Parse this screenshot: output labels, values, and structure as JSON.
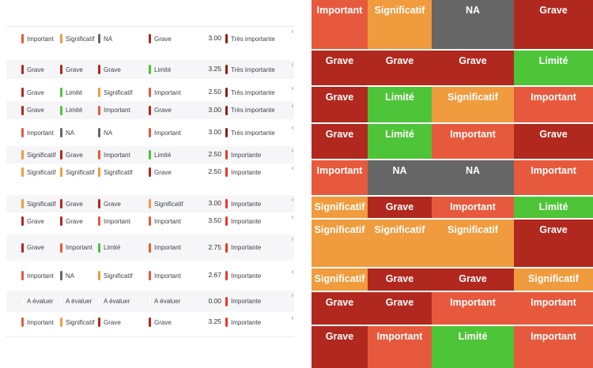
{
  "colors": {
    "important": "#e7593d",
    "significatif": "#f09b3d",
    "grave": "#b1281e",
    "limite": "#4ec439",
    "na": "#666666",
    "a_evaluer": "#ffffff",
    "tres_importante_bar": "#8e1f1b",
    "importante_bar": "#e8392c",
    "grid_text": "#ffffff",
    "table_text": "#41434b"
  },
  "table": {
    "rows": [
      {
        "cells": [
          "Important",
          "Significatif",
          "NA",
          "Grave"
        ],
        "score": "3.00",
        "priority": "Très importante"
      },
      {
        "cells": [
          "Grave",
          "Grave",
          "Grave",
          "Limité"
        ],
        "score": "3.25",
        "priority": "Très importante"
      },
      {
        "cells": [
          "Grave",
          "Limité",
          "Significatif",
          "Important"
        ],
        "score": "2.50",
        "priority": "Très importante"
      },
      {
        "cells": [
          "Grave",
          "Limité",
          "Important",
          "Grave"
        ],
        "score": "3.00",
        "priority": "Très importante"
      },
      {
        "cells": [
          "Important",
          "NA",
          "NA",
          "Important"
        ],
        "score": "3.00",
        "priority": "Très importante"
      },
      {
        "cells": [
          "Significatif",
          "Grave",
          "Important",
          "Limité"
        ],
        "score": "2.50",
        "priority": "Importante"
      },
      {
        "cells": [
          "Significatif",
          "Significatif",
          "Significatif",
          "Grave"
        ],
        "score": "2.50",
        "priority": "Importante"
      },
      {
        "cells": [
          "Significatif",
          "Grave",
          "Grave",
          "Significatif"
        ],
        "score": "3.00",
        "priority": "Importante"
      },
      {
        "cells": [
          "Grave",
          "Grave",
          "Important",
          "Important"
        ],
        "score": "3.50",
        "priority": "Importante"
      },
      {
        "cells": [
          "Grave",
          "Important",
          "Limité",
          "Important"
        ],
        "score": "2.75",
        "priority": "Importante"
      },
      {
        "cells": [
          "Important",
          "NA",
          "Significatif",
          "Important"
        ],
        "score": "2.67",
        "priority": "Importante"
      },
      {
        "cells": [
          "A évaluer",
          "A évaluer",
          "A évaluer",
          "A évaluer"
        ],
        "score": "0.00",
        "priority": "Importante"
      },
      {
        "cells": [
          "Important",
          "Significatif",
          "Grave",
          "Grave"
        ],
        "score": "3.25",
        "priority": "Importante"
      }
    ]
  },
  "grid": {
    "rows": [
      {
        "cells": [
          "Important",
          "Significatif",
          "NA",
          "Grave"
        ]
      },
      {
        "cells": [
          "Grave",
          "Grave",
          "Grave",
          "Limité"
        ]
      },
      {
        "cells": [
          "Grave",
          "Limité",
          "Significatif",
          "Important"
        ]
      },
      {
        "cells": [
          "Grave",
          "Limité",
          "Important",
          "Grave"
        ]
      },
      {
        "cells": [
          "Important",
          "NA",
          "NA",
          "Important"
        ]
      },
      {
        "cells": [
          "Significatif",
          "Grave",
          "Important",
          "Limité"
        ]
      },
      {
        "cells": [
          "Significatif",
          "Significatif",
          "Significatif",
          "Grave"
        ]
      },
      {
        "cells": [
          "Significatif",
          "Grave",
          "Grave",
          "Significatif"
        ]
      },
      {
        "cells": [
          "Grave",
          "Grave",
          "Important",
          "Important"
        ]
      },
      {
        "cells": [
          "Grave",
          "Important",
          "Limité",
          "Important"
        ]
      }
    ]
  }
}
